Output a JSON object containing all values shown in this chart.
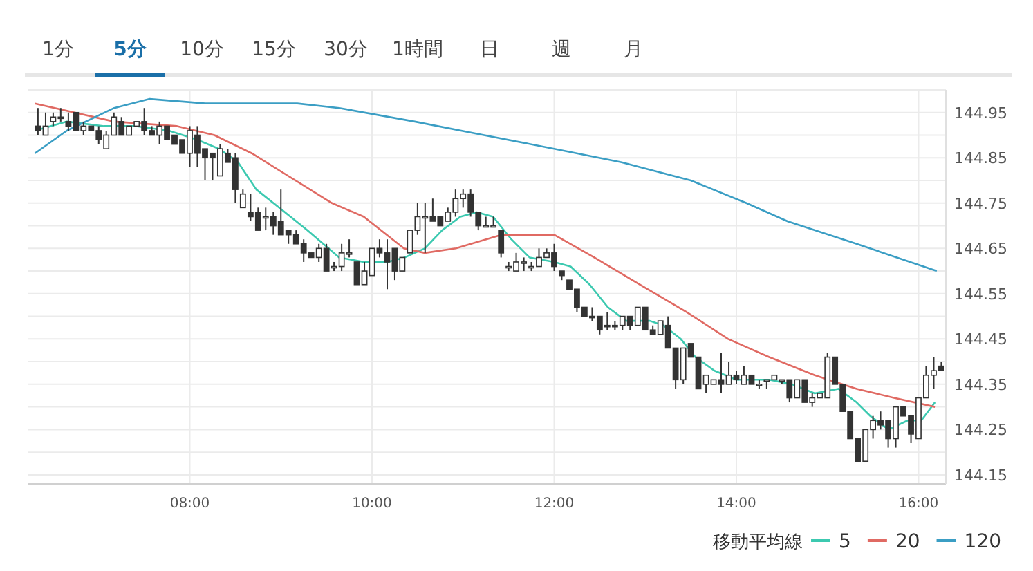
{
  "chart_data": {
    "type": "candlestick",
    "annotations": [
      "1分",
      "5分",
      "10分",
      "15分",
      "30分",
      "1時間",
      "日",
      "週",
      "月"
    ],
    "x": [
      6.333,
      6.417,
      6.5,
      6.583,
      6.667,
      6.75,
      6.833,
      6.917,
      7,
      7.083,
      7.167,
      7.25,
      7.333,
      7.417,
      7.5,
      7.583,
      7.667,
      7.75,
      7.833,
      7.917,
      8,
      8.083,
      8.167,
      8.25,
      8.333,
      8.417,
      8.5,
      8.583,
      8.667,
      8.75,
      8.833,
      8.917,
      9,
      9.083,
      9.167,
      9.25,
      9.333,
      9.417,
      9.5,
      9.583,
      9.667,
      9.75,
      9.833,
      9.917,
      10,
      10.083,
      10.167,
      10.25,
      10.333,
      10.417,
      10.5,
      10.583,
      10.667,
      10.75,
      10.833,
      10.917,
      11,
      11.083,
      11.167,
      11.25,
      11.333,
      11.417,
      11.5,
      11.583,
      11.667,
      11.75,
      11.833,
      11.917,
      12,
      12.083,
      12.167,
      12.25,
      12.333,
      12.417,
      12.5,
      12.583,
      12.667,
      12.75,
      12.833,
      12.917,
      13,
      13.083,
      13.167,
      13.25,
      13.333,
      13.417,
      13.5,
      13.583,
      13.667,
      13.75,
      13.833,
      13.917,
      14,
      14.083,
      14.167,
      14.25,
      14.333,
      14.417,
      14.5,
      14.583,
      14.667,
      14.75,
      14.833,
      14.917,
      15,
      15.083,
      15.167,
      15.25,
      15.333,
      15.417,
      15.5,
      15.583,
      15.667,
      15.75,
      15.833,
      15.917,
      16,
      16.083,
      16.167,
      16.25
    ],
    "ohlc": [
      [
        144.92,
        144.96,
        144.9,
        144.91
      ],
      [
        144.9,
        144.95,
        144.9,
        144.92
      ],
      [
        144.93,
        144.95,
        144.92,
        144.94
      ],
      [
        144.94,
        144.96,
        144.93,
        144.94
      ],
      [
        144.93,
        144.95,
        144.91,
        144.92
      ],
      [
        144.95,
        144.95,
        144.91,
        144.91
      ],
      [
        144.91,
        144.93,
        144.9,
        144.92
      ],
      [
        144.92,
        144.92,
        144.91,
        144.91
      ],
      [
        144.91,
        144.92,
        144.88,
        144.89
      ],
      [
        144.87,
        144.91,
        144.87,
        144.9
      ],
      [
        144.9,
        144.95,
        144.9,
        144.94
      ],
      [
        144.93,
        144.94,
        144.9,
        144.9
      ],
      [
        144.9,
        144.92,
        144.9,
        144.92
      ],
      [
        144.92,
        144.93,
        144.92,
        144.93
      ],
      [
        144.93,
        144.96,
        144.9,
        144.91
      ],
      [
        144.91,
        144.92,
        144.9,
        144.9
      ],
      [
        144.9,
        144.93,
        144.88,
        144.92
      ],
      [
        144.92,
        144.92,
        144.89,
        144.89
      ],
      [
        144.9,
        144.9,
        144.88,
        144.88
      ],
      [
        144.89,
        144.89,
        144.86,
        144.86
      ],
      [
        144.86,
        144.92,
        144.83,
        144.91
      ],
      [
        144.9,
        144.92,
        144.83,
        144.86
      ],
      [
        144.87,
        144.87,
        144.8,
        144.85
      ],
      [
        144.86,
        144.86,
        144.8,
        144.85
      ],
      [
        144.81,
        144.88,
        144.81,
        144.87
      ],
      [
        144.86,
        144.87,
        144.84,
        144.84
      ],
      [
        144.85,
        144.86,
        144.75,
        144.78
      ],
      [
        144.74,
        144.78,
        144.74,
        144.77
      ],
      [
        144.73,
        144.77,
        144.71,
        144.72
      ],
      [
        144.73,
        144.74,
        144.69,
        144.69
      ],
      [
        144.72,
        144.74,
        144.69,
        144.72
      ],
      [
        144.72,
        144.73,
        144.68,
        144.7
      ],
      [
        144.71,
        144.78,
        144.68,
        144.68
      ],
      [
        144.69,
        144.69,
        144.66,
        144.68
      ],
      [
        144.68,
        144.69,
        144.66,
        144.66
      ],
      [
        144.66,
        144.67,
        144.62,
        144.64
      ],
      [
        144.64,
        144.64,
        144.63,
        144.63
      ],
      [
        144.63,
        144.66,
        144.62,
        144.65
      ],
      [
        144.65,
        144.66,
        144.6,
        144.6
      ],
      [
        144.61,
        144.62,
        144.6,
        144.61
      ],
      [
        144.61,
        144.66,
        144.6,
        144.64
      ],
      [
        144.64,
        144.67,
        144.63,
        144.64
      ],
      [
        144.62,
        144.62,
        144.57,
        144.57
      ],
      [
        144.57,
        144.62,
        144.57,
        144.6
      ],
      [
        144.59,
        144.65,
        144.59,
        144.65
      ],
      [
        144.65,
        144.67,
        144.63,
        144.64
      ],
      [
        144.64,
        144.67,
        144.56,
        144.62
      ],
      [
        144.65,
        144.65,
        144.58,
        144.6
      ],
      [
        144.6,
        144.63,
        144.6,
        144.63
      ],
      [
        144.64,
        144.69,
        144.64,
        144.69
      ],
      [
        144.69,
        144.75,
        144.68,
        144.72
      ],
      [
        144.72,
        144.75,
        144.64,
        144.72
      ],
      [
        144.72,
        144.76,
        144.71,
        144.71
      ],
      [
        144.72,
        144.72,
        144.7,
        144.7
      ],
      [
        144.71,
        144.74,
        144.71,
        144.73
      ],
      [
        144.73,
        144.78,
        144.72,
        144.76
      ],
      [
        144.76,
        144.78,
        144.74,
        144.77
      ],
      [
        144.77,
        144.78,
        144.72,
        144.73
      ],
      [
        144.73,
        144.73,
        144.69,
        144.7
      ],
      [
        144.7,
        144.72,
        144.7,
        144.7
      ],
      [
        144.7,
        144.72,
        144.7,
        144.7
      ],
      [
        144.69,
        144.69,
        144.63,
        144.64
      ],
      [
        144.61,
        144.62,
        144.6,
        144.61
      ],
      [
        144.6,
        144.64,
        144.6,
        144.62
      ],
      [
        144.62,
        144.63,
        144.6,
        144.62
      ],
      [
        144.61,
        144.62,
        144.6,
        144.61
      ],
      [
        144.61,
        144.65,
        144.61,
        144.63
      ],
      [
        144.63,
        144.65,
        144.63,
        144.64
      ],
      [
        144.64,
        144.66,
        144.6,
        144.61
      ],
      [
        144.6,
        144.6,
        144.58,
        144.59
      ],
      [
        144.58,
        144.58,
        144.56,
        144.56
      ],
      [
        144.56,
        144.56,
        144.51,
        144.52
      ],
      [
        144.52,
        144.52,
        144.5,
        144.5
      ],
      [
        144.5,
        144.52,
        144.49,
        144.5
      ],
      [
        144.5,
        144.5,
        144.46,
        144.47
      ],
      [
        144.48,
        144.51,
        144.47,
        144.48
      ],
      [
        144.48,
        144.49,
        144.47,
        144.48
      ],
      [
        144.48,
        144.5,
        144.47,
        144.5
      ],
      [
        144.5,
        144.5,
        144.47,
        144.48
      ],
      [
        144.48,
        144.52,
        144.48,
        144.52
      ],
      [
        144.52,
        144.52,
        144.47,
        144.47
      ],
      [
        144.47,
        144.48,
        144.46,
        144.46
      ],
      [
        144.46,
        144.49,
        144.46,
        144.49
      ],
      [
        144.48,
        144.5,
        144.43,
        144.43
      ],
      [
        144.43,
        144.43,
        144.34,
        144.36
      ],
      [
        144.36,
        144.43,
        144.35,
        144.43
      ],
      [
        144.44,
        144.44,
        144.41,
        144.41
      ],
      [
        144.41,
        144.41,
        144.34,
        144.34
      ],
      [
        144.35,
        144.37,
        144.33,
        144.37
      ],
      [
        144.35,
        144.36,
        144.35,
        144.36
      ],
      [
        144.36,
        144.42,
        144.33,
        144.35
      ],
      [
        144.35,
        144.4,
        144.35,
        144.37
      ],
      [
        144.37,
        144.38,
        144.35,
        144.36
      ],
      [
        144.35,
        144.39,
        144.35,
        144.37
      ],
      [
        144.37,
        144.37,
        144.35,
        144.35
      ],
      [
        144.35,
        144.36,
        144.34,
        144.35
      ],
      [
        144.36,
        144.36,
        144.34,
        144.36
      ],
      [
        144.36,
        144.37,
        144.36,
        144.37
      ],
      [
        144.36,
        144.36,
        144.35,
        144.36
      ],
      [
        144.36,
        144.36,
        144.31,
        144.32
      ],
      [
        144.32,
        144.36,
        144.32,
        144.36
      ],
      [
        144.36,
        144.36,
        144.31,
        144.31
      ],
      [
        144.31,
        144.33,
        144.3,
        144.32
      ],
      [
        144.32,
        144.33,
        144.32,
        144.33
      ],
      [
        144.32,
        144.42,
        144.32,
        144.41
      ],
      [
        144.41,
        144.41,
        144.35,
        144.35
      ],
      [
        144.35,
        144.35,
        144.29,
        144.29
      ],
      [
        144.29,
        144.29,
        144.23,
        144.23
      ],
      [
        144.23,
        144.23,
        144.18,
        144.18
      ],
      [
        144.18,
        144.25,
        144.18,
        144.25
      ],
      [
        144.25,
        144.28,
        144.23,
        144.27
      ],
      [
        144.27,
        144.29,
        144.25,
        144.26
      ],
      [
        144.27,
        144.27,
        144.21,
        144.23
      ],
      [
        144.23,
        144.3,
        144.21,
        144.3
      ],
      [
        144.3,
        144.3,
        144.28,
        144.28
      ],
      [
        144.28,
        144.28,
        144.22,
        144.24
      ],
      [
        144.23,
        144.32,
        144.23,
        144.32
      ],
      [
        144.32,
        144.39,
        144.32,
        144.37
      ],
      [
        144.37,
        144.41,
        144.34,
        144.38
      ],
      [
        144.39,
        144.4,
        144.38,
        144.38
      ]
    ],
    "series": [
      {
        "name": "5",
        "type": "line",
        "color": "#3cc9b0",
        "x": [
          6.3,
          6.65,
          7.06,
          7.41,
          7.77,
          8.08,
          8.32,
          8.53,
          8.73,
          8.98,
          9.29,
          9.64,
          9.91,
          10.17,
          10.36,
          10.58,
          10.77,
          10.97,
          11.15,
          11.33,
          11.53,
          11.73,
          12.0,
          12.18,
          12.39,
          12.59,
          12.79,
          13.05,
          13.2,
          13.39,
          13.55,
          13.76,
          14.0,
          14.36,
          14.61,
          14.86,
          15.12,
          15.32,
          15.47,
          15.67,
          15.88,
          16.03,
          16.18
        ],
        "values": [
          144.91,
          144.93,
          144.92,
          144.92,
          144.91,
          144.89,
          144.87,
          144.84,
          144.78,
          144.74,
          144.69,
          144.63,
          144.62,
          144.62,
          144.63,
          144.65,
          144.69,
          144.72,
          144.73,
          144.72,
          144.67,
          144.63,
          144.62,
          144.61,
          144.57,
          144.52,
          144.49,
          144.49,
          144.48,
          144.45,
          144.41,
          144.38,
          144.36,
          144.36,
          144.35,
          144.33,
          144.34,
          144.31,
          144.28,
          144.25,
          144.27,
          144.27,
          144.31
        ]
      },
      {
        "name": "20",
        "type": "line",
        "color": "#e06a63",
        "x": [
          6.3,
          7.17,
          7.86,
          8.27,
          8.68,
          9.08,
          9.56,
          9.91,
          10.35,
          10.58,
          10.92,
          11.42,
          12.0,
          12.44,
          12.94,
          13.45,
          13.91,
          14.36,
          14.86,
          15.32,
          15.73,
          16.18
        ],
        "values": [
          144.97,
          144.93,
          144.92,
          144.9,
          144.86,
          144.81,
          144.75,
          144.72,
          144.65,
          144.64,
          144.65,
          144.68,
          144.68,
          144.63,
          144.57,
          144.51,
          144.45,
          144.41,
          144.37,
          144.34,
          144.32,
          144.3
        ]
      },
      {
        "name": "120",
        "type": "line",
        "color": "#3b9ec4",
        "x": [
          6.3,
          6.65,
          7.17,
          7.56,
          8.17,
          9.18,
          9.64,
          10.47,
          11.23,
          12.0,
          12.74,
          13.5,
          14.11,
          14.56,
          15.32,
          16.2
        ],
        "values": [
          144.86,
          144.91,
          144.96,
          144.98,
          144.97,
          144.97,
          144.96,
          144.93,
          144.9,
          144.87,
          144.84,
          144.8,
          144.75,
          144.71,
          144.66,
          144.6
        ]
      }
    ],
    "legend_title": "移動平均線",
    "legend": "bottom right",
    "xlim": [
      6.22,
      16.3
    ],
    "xticks": [
      {
        "value": 8,
        "label": "08:00"
      },
      {
        "value": 10,
        "label": "10:00"
      },
      {
        "value": 12,
        "label": "12:00"
      },
      {
        "value": 14,
        "label": "14:00"
      },
      {
        "value": 16,
        "label": "16:00"
      }
    ],
    "ylim": [
      144.13,
      145.0
    ],
    "yticks": [
      144.15,
      {
        "value": 144.2,
        "label": null
      },
      144.25,
      {
        "value": 144.3,
        "label": null
      },
      144.35,
      {
        "value": 144.4,
        "label": null
      },
      144.45,
      {
        "value": 144.5,
        "label": null
      },
      144.55,
      {
        "value": 144.6,
        "label": null
      },
      144.65,
      {
        "value": 144.7,
        "label": null
      },
      144.75,
      {
        "value": 144.8,
        "label": null
      },
      144.85,
      {
        "value": 144.9,
        "label": null
      },
      144.95,
      {
        "value": 145.0,
        "label": null
      }
    ],
    "grid": true
  }
}
